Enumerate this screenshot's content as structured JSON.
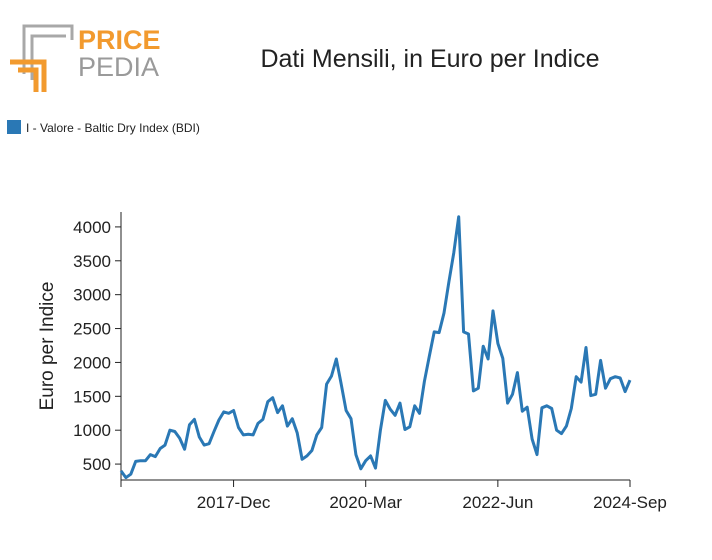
{
  "logo": {
    "top": "PRICE",
    "bottom": "PEDIA"
  },
  "chart_data": {
    "type": "line",
    "title": "Dati Mensili, in Euro per Indice",
    "y_label": "Euro per Indice",
    "x": [
      "2016-Jan",
      "2016-Feb",
      "2016-Mar",
      "2016-Apr",
      "2016-May",
      "2016-Jun",
      "2016-Jul",
      "2016-Aug",
      "2016-Sep",
      "2016-Oct",
      "2016-Nov",
      "2016-Dec",
      "2017-Jan",
      "2017-Feb",
      "2017-Mar",
      "2017-Apr",
      "2017-May",
      "2017-Jun",
      "2017-Jul",
      "2017-Aug",
      "2017-Sep",
      "2017-Oct",
      "2017-Nov",
      "2017-Dec",
      "2018-Jan",
      "2018-Feb",
      "2018-Mar",
      "2018-Apr",
      "2018-May",
      "2018-Jun",
      "2018-Jul",
      "2018-Aug",
      "2018-Sep",
      "2018-Oct",
      "2018-Nov",
      "2018-Dec",
      "2019-Jan",
      "2019-Feb",
      "2019-Mar",
      "2019-Apr",
      "2019-May",
      "2019-Jun",
      "2019-Jul",
      "2019-Aug",
      "2019-Sep",
      "2019-Oct",
      "2019-Nov",
      "2019-Dec",
      "2020-Jan",
      "2020-Feb",
      "2020-Mar",
      "2020-Apr",
      "2020-May",
      "2020-Jun",
      "2020-Jul",
      "2020-Aug",
      "2020-Sep",
      "2020-Oct",
      "2020-Nov",
      "2020-Dec",
      "2021-Jan",
      "2021-Feb",
      "2021-Mar",
      "2021-Apr",
      "2021-May",
      "2021-Jun",
      "2021-Jul",
      "2021-Aug",
      "2021-Sep",
      "2021-Oct",
      "2021-Nov",
      "2021-Dec",
      "2022-Jan",
      "2022-Feb",
      "2022-Mar",
      "2022-Apr",
      "2022-May",
      "2022-Jun",
      "2022-Jul",
      "2022-Aug",
      "2022-Sep",
      "2022-Oct",
      "2022-Nov",
      "2022-Dec",
      "2023-Jan",
      "2023-Feb",
      "2023-Mar",
      "2023-Apr",
      "2023-May",
      "2023-Jun",
      "2023-Jul",
      "2023-Aug",
      "2023-Sep",
      "2023-Oct",
      "2023-Nov",
      "2023-Dec",
      "2024-Jan",
      "2024-Feb",
      "2024-Mar",
      "2024-Apr",
      "2024-May",
      "2024-Jun",
      "2024-Jul",
      "2024-Aug",
      "2024-Sep"
    ],
    "series": [
      {
        "name": "I - Valore - Baltic Dry Index (BDI)",
        "color": "#2a78b5",
        "values": [
          400,
          300,
          350,
          540,
          550,
          550,
          640,
          610,
          730,
          780,
          1000,
          980,
          880,
          720,
          1080,
          1160,
          900,
          780,
          800,
          980,
          1150,
          1270,
          1250,
          1290,
          1040,
          930,
          940,
          930,
          1100,
          1160,
          1420,
          1480,
          1260,
          1360,
          1060,
          1170,
          960,
          570,
          620,
          700,
          930,
          1040,
          1680,
          1800,
          2050,
          1680,
          1290,
          1170,
          640,
          430,
          550,
          620,
          440,
          1000,
          1440,
          1310,
          1220,
          1400,
          1010,
          1050,
          1360,
          1250,
          1720,
          2090,
          2450,
          2440,
          2730,
          3190,
          3620,
          4150,
          2450,
          2420,
          1580,
          1620,
          2240,
          2050,
          2760,
          2280,
          2060,
          1400,
          1530,
          1850,
          1280,
          1340,
          870,
          640,
          1330,
          1360,
          1320,
          1000,
          950,
          1060,
          1320,
          1790,
          1710,
          2220,
          1510,
          1530,
          2030,
          1620,
          1760,
          1790,
          1770,
          1570,
          1740
        ]
      }
    ],
    "xticks": [
      "2017-Dec",
      "2020-Mar",
      "2022-Jun",
      "2024-Sep"
    ],
    "ylim": [
      265,
      4220
    ],
    "yticks": [
      500,
      1000,
      1500,
      2000,
      2500,
      3000,
      3500,
      4000
    ]
  }
}
